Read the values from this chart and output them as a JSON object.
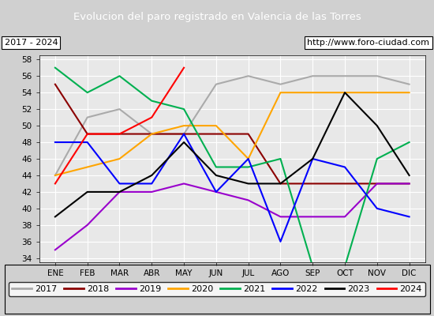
{
  "title": "Evolucion del paro registrado en Valencia de las Torres",
  "subtitle_left": "2017 - 2024",
  "subtitle_right": "http://www.foro-ciudad.com",
  "title_bg": "#4472c4",
  "outer_bg": "#d0d0d0",
  "plot_bg": "#e8e8e8",
  "months": [
    "ENE",
    "FEB",
    "MAR",
    "ABR",
    "MAY",
    "JUN",
    "JUL",
    "AGO",
    "SEP",
    "OCT",
    "NOV",
    "DIC"
  ],
  "ylim": [
    33.5,
    58.5
  ],
  "yticks": [
    34,
    36,
    38,
    40,
    42,
    44,
    46,
    48,
    50,
    52,
    54,
    56,
    58
  ],
  "series": {
    "2017": {
      "color": "#aaaaaa",
      "data": [
        44,
        51,
        52,
        49,
        49,
        55,
        56,
        55,
        56,
        56,
        56,
        55
      ]
    },
    "2018": {
      "color": "#8b0000",
      "data": [
        55,
        49,
        49,
        49,
        49,
        49,
        49,
        43,
        43,
        43,
        43,
        43
      ]
    },
    "2019": {
      "color": "#9900cc",
      "data": [
        35,
        38,
        42,
        42,
        43,
        42,
        41,
        39,
        39,
        39,
        43,
        43
      ]
    },
    "2020": {
      "color": "#ffa500",
      "data": [
        44,
        45,
        46,
        49,
        50,
        50,
        46,
        54,
        54,
        54,
        54,
        54
      ]
    },
    "2021": {
      "color": "#00b050",
      "data": [
        57,
        54,
        56,
        53,
        52,
        45,
        45,
        46,
        33,
        33,
        46,
        48
      ]
    },
    "2022": {
      "color": "#0000ff",
      "data": [
        48,
        48,
        43,
        43,
        49,
        42,
        46,
        36,
        46,
        45,
        40,
        39
      ]
    },
    "2023": {
      "color": "#000000",
      "data": [
        39,
        42,
        42,
        44,
        48,
        44,
        43,
        43,
        46,
        54,
        50,
        44
      ]
    },
    "2024": {
      "color": "#ff0000",
      "data": [
        43,
        49,
        49,
        51,
        57,
        null,
        null,
        null,
        null,
        null,
        null,
        null
      ]
    }
  }
}
